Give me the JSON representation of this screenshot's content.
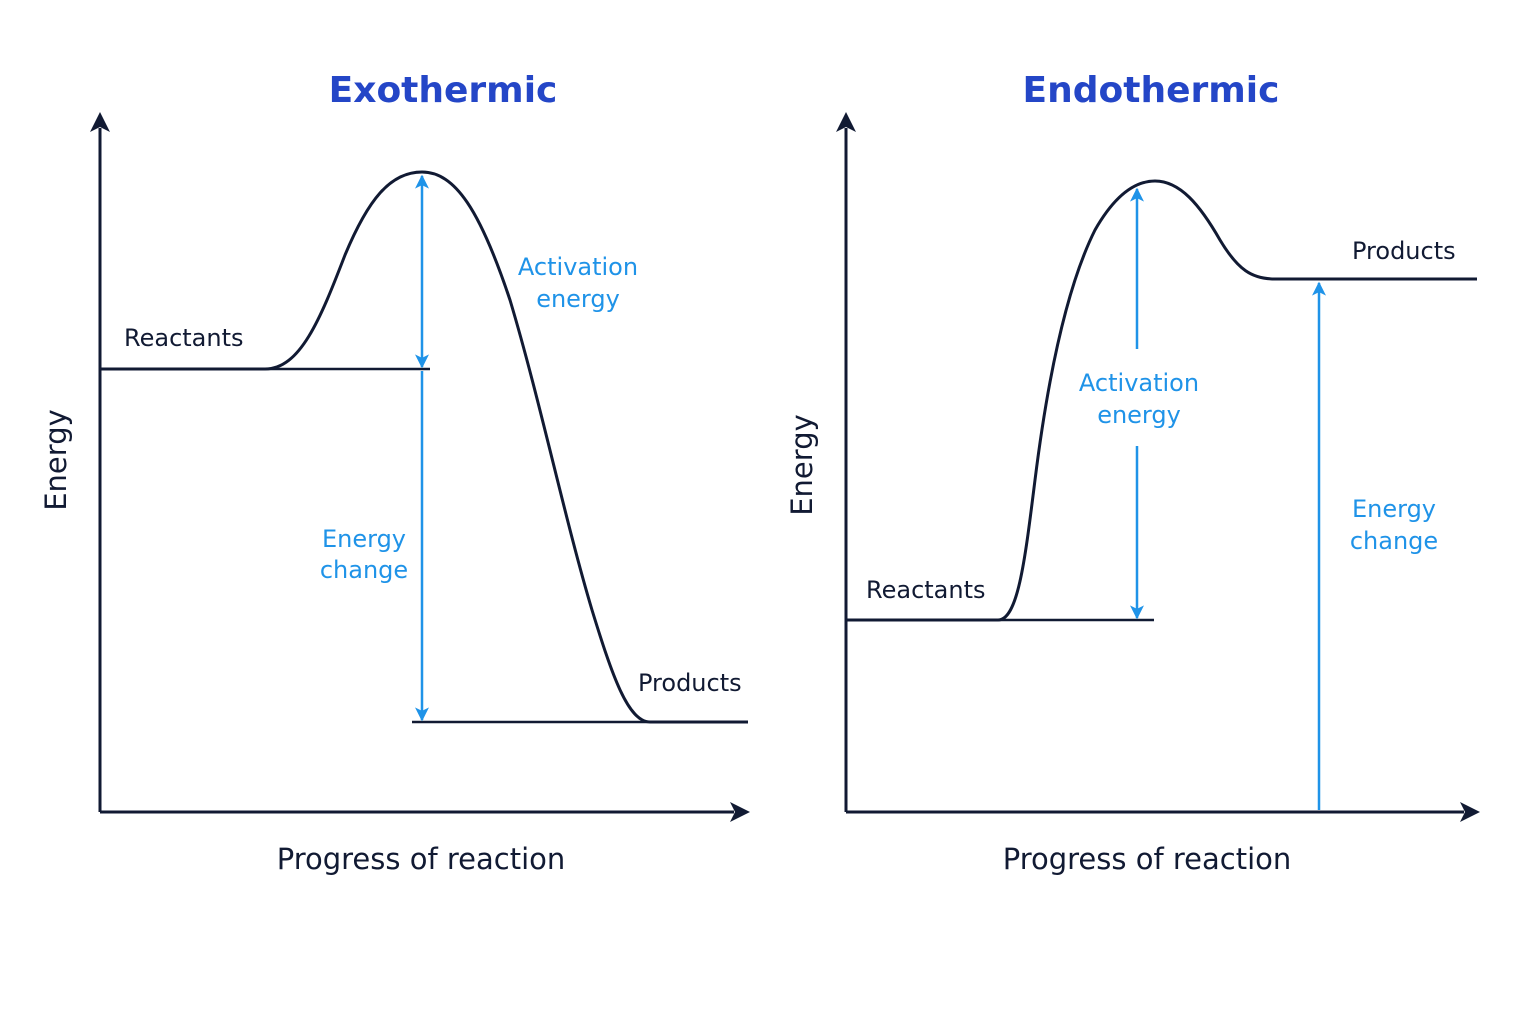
{
  "colors": {
    "title": "#2446c7",
    "ink": "#111a33",
    "accent": "#1f93e8",
    "background": "#ffffff"
  },
  "exothermic": {
    "title": "Exothermic",
    "ylabel": "Energy",
    "xlabel": "Progress of reaction",
    "reactants_label": "Reactants",
    "products_label": "Products",
    "activation_label_line1": "Activation",
    "activation_label_line2": "energy",
    "change_label_line1": "Energy",
    "change_label_line2": "change"
  },
  "endothermic": {
    "title": "Endothermic",
    "ylabel": "Energy",
    "xlabel": "Progress of reaction",
    "reactants_label": "Reactants",
    "products_label": "Products",
    "activation_label_line1": "Activation",
    "activation_label_line2": "energy",
    "change_label_line1": "Energy",
    "change_label_line2": "change"
  }
}
